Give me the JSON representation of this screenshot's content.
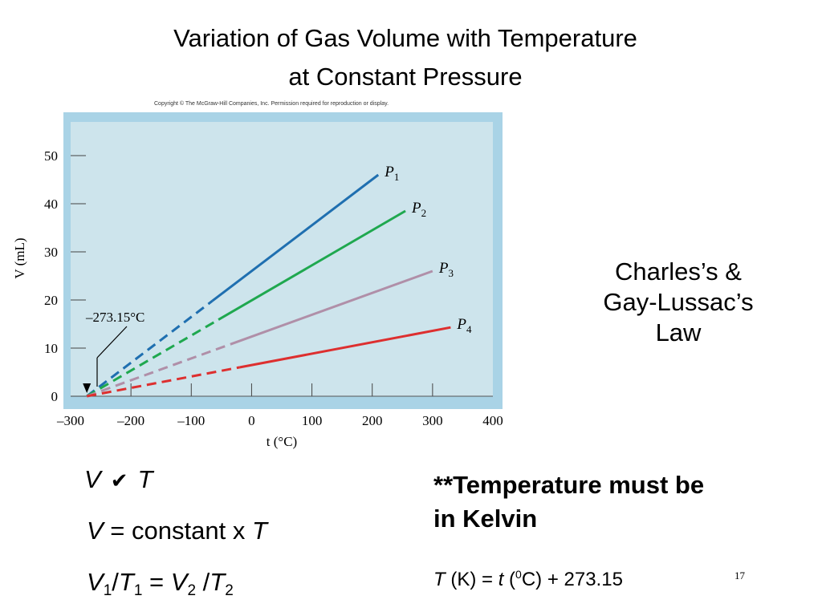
{
  "slide": {
    "title_line1": "Variation of Gas Volume with Temperature",
    "title_line2": "at Constant Pressure",
    "copyright": "Copyright © The McGraw-Hill Companies, Inc. Permission required for reproduction or display.",
    "law_line1": "Charles’s &",
    "law_line2": "Gay-Lussac’s",
    "law_line3": "Law",
    "note_line1": "**Temperature must be",
    "note_line2": "in Kelvin",
    "eq1_V": "V",
    "eq1_symbol": "✔",
    "eq1_T": "T",
    "eq2_V": "V",
    "eq2_text": " = constant x ",
    "eq2_T": "T",
    "eq3_V1": "V",
    "eq3_sub1": "1",
    "eq3_slash1": "/",
    "eq3_T1": "T",
    "eq3_sub2": "1",
    "eq3_eq": " = ",
    "eq3_V2": "V",
    "eq3_sub3": "2",
    "eq3_slash2": " /",
    "eq3_T2": "T",
    "eq3_sub4": "2",
    "kelvin_T": "T",
    "kelvin_mid": " (K) = ",
    "kelvin_t": "t",
    "kelvin_paren": " (",
    "kelvin_sup": "0",
    "kelvin_end": "C) + 273.15",
    "page_number": "17"
  },
  "chart_data": {
    "type": "line",
    "xlabel": "t (°C)",
    "ylabel": "V (mL)",
    "xlim": [
      -300,
      400
    ],
    "ylim": [
      0,
      50
    ],
    "x_ticks": [
      -300,
      -200,
      -100,
      0,
      100,
      200,
      300,
      400
    ],
    "y_ticks": [
      0,
      10,
      20,
      30,
      40,
      50
    ],
    "x_tick_labels": [
      "–300",
      "–200",
      "–100",
      "0",
      "100",
      "200",
      "300",
      "400"
    ],
    "y_tick_labels": [
      "0",
      "10",
      "20",
      "30",
      "40",
      "50"
    ],
    "annotation": "–273.15°C",
    "annotation_x": -273.15,
    "background_color": "#cde4ec",
    "frame_color": "#a9d3e6",
    "series": [
      {
        "name": "P1",
        "color": "#1f6fb0",
        "x0": -273.15,
        "x_break": -65,
        "x_end": 210,
        "y_end": 46
      },
      {
        "name": "P2",
        "color": "#1fa84f",
        "x0": -273.15,
        "x_break": -55,
        "x_end": 255,
        "y_end": 38.5
      },
      {
        "name": "P3",
        "color": "#b08fa8",
        "x0": -273.15,
        "x_break": -35,
        "x_end": 300,
        "y_end": 26
      },
      {
        "name": "P4",
        "color": "#dd2f2f",
        "x0": -273.15,
        "x_break": -20,
        "x_end": 330,
        "y_end": 14.3
      }
    ]
  }
}
